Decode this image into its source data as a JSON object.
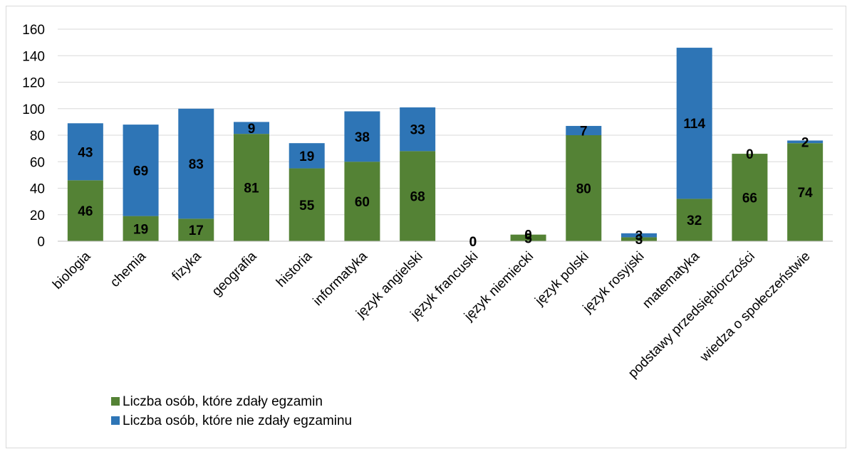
{
  "chart_data": {
    "type": "bar",
    "stacked": true,
    "title": "",
    "xlabel": "",
    "ylabel": "",
    "ylim": [
      0,
      160
    ],
    "yticks": [
      0,
      20,
      40,
      60,
      80,
      100,
      120,
      140,
      160
    ],
    "grid": true,
    "legend_position": "bottom-left",
    "categories": [
      "biologia",
      "chemia",
      "fizyka",
      "geografia",
      "historia",
      "informatyka",
      "język angielski",
      "język francuski",
      "język niemiecki",
      "język polski",
      "język rosyjski",
      "matematyka",
      "podstawy przedsiębiorczości",
      "wiedza o społeczeństwie"
    ],
    "series": [
      {
        "name": "Liczba osób, które zdały egzamin",
        "color": "#548235",
        "values": [
          46,
          19,
          17,
          81,
          55,
          60,
          68,
          0,
          5,
          80,
          3,
          32,
          66,
          74
        ]
      },
      {
        "name": "Liczba osób, które nie zdały egzaminu",
        "color": "#2e75b6",
        "values": [
          43,
          69,
          83,
          9,
          19,
          38,
          33,
          0,
          0,
          7,
          3,
          114,
          0,
          2
        ]
      }
    ]
  }
}
